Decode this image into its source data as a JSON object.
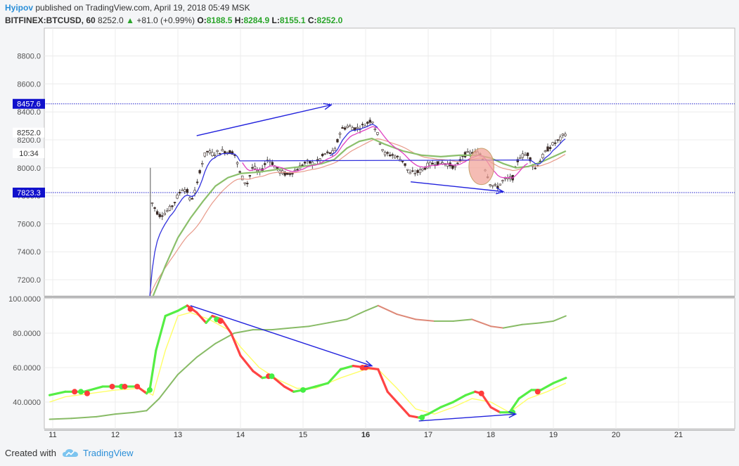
{
  "header": {
    "author": "Hyipov",
    "published": "published on TradingView.com, April 19, 2018 05:49 MSK",
    "symbol": "BITFINEX:BTCUSD, 60",
    "last": "8252.0",
    "change": "+81.0 (+0.99%)",
    "open_label": "O:",
    "open": "8188.5",
    "high_label": "H:",
    "high": "8284.9",
    "low_label": "L:",
    "low": "8155.1",
    "close_label": "C:",
    "close": "8252.0"
  },
  "footer": {
    "created_with": "Created with",
    "brand": "TradingView",
    "logo_icon": "tradingview-cloud-icon"
  },
  "colors": {
    "candle_up": "#ffffff",
    "candle_down": "#3b2a26",
    "candle_wick": "#555555",
    "ema_fast": "#3333dd",
    "ema_mid": "#e040c0",
    "ema_slow": "#8bbf6b",
    "ema_salmon": "#e89a8a",
    "rsi_fast_up": "#55ee44",
    "rsi_fast_down": "#ff4444",
    "rsi_signal": "#ffff66",
    "rsi_slow_up": "#88bb66",
    "rsi_slow_down": "#dd8877",
    "annotation": "#2222dd",
    "level_line": "#2222cc",
    "level_tag": "#1111cc",
    "ellipse_fill": "#f1a59b"
  },
  "chart_data": [
    {
      "type": "candlestick",
      "title": "",
      "x_ticks": [
        "11",
        "12",
        "13",
        "14",
        "15",
        "16",
        "17",
        "18",
        "19",
        "20",
        "21"
      ],
      "y_ticks": [
        "7200.0",
        "7400.0",
        "7600.0",
        "7800.0",
        "8000.0",
        "8200.0",
        "8400.0",
        "8600.0",
        "8800.0"
      ],
      "ylim": [
        7080,
        8880
      ],
      "xlim": [
        10.9,
        21.6
      ],
      "price_tags": [
        {
          "value": 8457.6,
          "label": "8457.6",
          "style": "blue",
          "line": true
        },
        {
          "value": 7823.3,
          "label": "7823.3",
          "style": "blue",
          "line": true
        },
        {
          "value": 8252.0,
          "label": "8252.0",
          "style": "white",
          "line": false
        },
        {
          "value": 8105.0,
          "label": "10:34",
          "style": "white",
          "line": false
        }
      ],
      "price_points": [
        [
          12.55,
          7080
        ],
        [
          12.58,
          7760
        ],
        [
          12.62,
          7720
        ],
        [
          12.7,
          7660
        ],
        [
          12.8,
          7680
        ],
        [
          12.9,
          7720
        ],
        [
          13.0,
          7800
        ],
        [
          13.08,
          7860
        ],
        [
          13.15,
          7830
        ],
        [
          13.2,
          7760
        ],
        [
          13.3,
          7860
        ],
        [
          13.35,
          7980
        ],
        [
          13.45,
          8120
        ],
        [
          13.55,
          8100
        ],
        [
          13.7,
          8120
        ],
        [
          13.9,
          8110
        ],
        [
          14.0,
          7950
        ],
        [
          14.1,
          7880
        ],
        [
          14.2,
          8010
        ],
        [
          14.3,
          7960
        ],
        [
          14.45,
          8070
        ],
        [
          14.6,
          7980
        ],
        [
          14.75,
          7950
        ],
        [
          14.9,
          7990
        ],
        [
          15.05,
          8040
        ],
        [
          15.2,
          8030
        ],
        [
          15.35,
          8100
        ],
        [
          15.5,
          8110
        ],
        [
          15.6,
          8270
        ],
        [
          15.72,
          8300
        ],
        [
          15.85,
          8280
        ],
        [
          16.0,
          8310
        ],
        [
          16.1,
          8350
        ],
        [
          16.22,
          8200
        ],
        [
          16.3,
          8100
        ],
        [
          16.45,
          8090
        ],
        [
          16.6,
          8050
        ],
        [
          16.7,
          7960
        ],
        [
          16.85,
          7970
        ],
        [
          17.0,
          8020
        ],
        [
          17.15,
          8040
        ],
        [
          17.3,
          8030
        ],
        [
          17.45,
          8000
        ],
        [
          17.55,
          8090
        ],
        [
          17.7,
          8110
        ],
        [
          17.85,
          8100
        ],
        [
          17.92,
          7980
        ],
        [
          18.0,
          7880
        ],
        [
          18.1,
          7860
        ],
        [
          18.2,
          7910
        ],
        [
          18.35,
          7930
        ],
        [
          18.45,
          8080
        ],
        [
          18.6,
          8100
        ],
        [
          18.7,
          7990
        ],
        [
          18.8,
          8060
        ],
        [
          18.9,
          8130
        ],
        [
          19.0,
          8170
        ],
        [
          19.1,
          8200
        ],
        [
          19.2,
          8252
        ]
      ],
      "series": [
        {
          "name": "",
          "color": "ema_fast",
          "role": "fast moving average"
        },
        {
          "name": "",
          "color": "ema_mid",
          "role": "medium moving average"
        },
        {
          "name": "",
          "color": "ema_salmon",
          "role": "moving average"
        },
        {
          "name": "",
          "color": "ema_slow",
          "role": "slow moving average"
        }
      ],
      "slow_ma": [
        [
          12.6,
          7080
        ],
        [
          12.8,
          7300
        ],
        [
          13.0,
          7500
        ],
        [
          13.2,
          7640
        ],
        [
          13.4,
          7760
        ],
        [
          13.6,
          7870
        ],
        [
          13.8,
          7930
        ],
        [
          14.0,
          7960
        ],
        [
          14.3,
          7970
        ],
        [
          14.6,
          7990
        ],
        [
          15.0,
          8010
        ],
        [
          15.3,
          8030
        ],
        [
          15.5,
          8060
        ],
        [
          15.7,
          8140
        ],
        [
          15.9,
          8190
        ],
        [
          16.1,
          8210
        ],
        [
          16.3,
          8170
        ],
        [
          16.6,
          8120
        ],
        [
          16.9,
          8090
        ],
        [
          17.2,
          8080
        ],
        [
          17.5,
          8090
        ],
        [
          17.8,
          8090
        ],
        [
          18.0,
          8070
        ],
        [
          18.2,
          8030
        ],
        [
          18.4,
          8000
        ],
        [
          18.6,
          8010
        ],
        [
          18.8,
          8040
        ],
        [
          19.0,
          8080
        ],
        [
          19.2,
          8120
        ]
      ],
      "annotations": [
        {
          "type": "arrow",
          "from": [
            13.3,
            8230
          ],
          "to": [
            15.45,
            8450
          ]
        },
        {
          "type": "arrow",
          "from": [
            16.72,
            7900
          ],
          "to": [
            18.2,
            7830
          ]
        },
        {
          "type": "ellipse",
          "center": [
            17.85,
            8010
          ],
          "rx_days": 0.2,
          "ry_price": 130
        }
      ]
    },
    {
      "type": "line",
      "title": "",
      "y_ticks": [
        "40.0000",
        "60.0000",
        "80.0000",
        "100.0000"
      ],
      "ylim": [
        26,
        100
      ],
      "xlim": [
        10.9,
        21.6
      ],
      "series": [
        {
          "name": "",
          "role": "fast rsi",
          "points": [
            [
              10.95,
              44
            ],
            [
              11.2,
              46
            ],
            [
              11.5,
              46
            ],
            [
              11.8,
              49
            ],
            [
              12.1,
              49
            ],
            [
              12.35,
              49
            ],
            [
              12.5,
              45
            ],
            [
              12.55,
              47
            ],
            [
              12.65,
              70
            ],
            [
              12.8,
              90
            ],
            [
              13.0,
              93
            ],
            [
              13.15,
              96
            ],
            [
              13.3,
              92
            ],
            [
              13.45,
              86
            ],
            [
              13.55,
              90
            ],
            [
              13.7,
              88
            ],
            [
              13.85,
              80
            ],
            [
              14.0,
              67
            ],
            [
              14.2,
              58
            ],
            [
              14.35,
              54
            ],
            [
              14.5,
              55
            ],
            [
              14.7,
              49
            ],
            [
              14.85,
              46
            ],
            [
              15.0,
              47
            ],
            [
              15.2,
              49
            ],
            [
              15.4,
              51
            ],
            [
              15.6,
              59
            ],
            [
              15.8,
              61
            ],
            [
              16.0,
              60
            ],
            [
              16.2,
              59
            ],
            [
              16.35,
              46
            ],
            [
              16.5,
              40
            ],
            [
              16.7,
              32
            ],
            [
              16.85,
              31
            ],
            [
              17.0,
              33
            ],
            [
              17.2,
              37
            ],
            [
              17.4,
              40
            ],
            [
              17.6,
              44
            ],
            [
              17.75,
              46
            ],
            [
              17.85,
              45
            ],
            [
              18.0,
              37
            ],
            [
              18.15,
              34
            ],
            [
              18.3,
              34
            ],
            [
              18.45,
              42
            ],
            [
              18.65,
              47
            ],
            [
              18.8,
              47
            ],
            [
              19.0,
              51
            ],
            [
              19.2,
              54
            ]
          ]
        },
        {
          "name": "",
          "role": "signal line",
          "points": [
            [
              10.95,
              40
            ],
            [
              11.2,
              43
            ],
            [
              11.6,
              45
            ],
            [
              12.0,
              47
            ],
            [
              12.4,
              48
            ],
            [
              12.6,
              44
            ],
            [
              12.8,
              70
            ],
            [
              13.0,
              90
            ],
            [
              13.2,
              92
            ],
            [
              13.5,
              88
            ],
            [
              13.8,
              82
            ],
            [
              14.0,
              72
            ],
            [
              14.3,
              60
            ],
            [
              14.6,
              53
            ],
            [
              14.9,
              48
            ],
            [
              15.2,
              48
            ],
            [
              15.6,
              54
            ],
            [
              16.0,
              59
            ],
            [
              16.2,
              59
            ],
            [
              16.5,
              48
            ],
            [
              16.8,
              36
            ],
            [
              17.1,
              33
            ],
            [
              17.4,
              37
            ],
            [
              17.7,
              42
            ],
            [
              18.0,
              40
            ],
            [
              18.3,
              34
            ],
            [
              18.6,
              42
            ],
            [
              18.9,
              46
            ],
            [
              19.2,
              51
            ]
          ]
        },
        {
          "name": "",
          "role": "slow rsi",
          "points": [
            [
              10.95,
              30
            ],
            [
              11.3,
              30.5
            ],
            [
              11.7,
              31.5
            ],
            [
              12.0,
              33
            ],
            [
              12.3,
              34
            ],
            [
              12.5,
              35
            ],
            [
              12.7,
              42
            ],
            [
              13.0,
              56
            ],
            [
              13.3,
              66
            ],
            [
              13.6,
              74
            ],
            [
              13.9,
              80
            ],
            [
              14.2,
              82
            ],
            [
              14.5,
              82
            ],
            [
              14.8,
              83
            ],
            [
              15.1,
              84
            ],
            [
              15.4,
              86
            ],
            [
              15.7,
              88
            ],
            [
              16.0,
              93
            ],
            [
              16.2,
              96
            ],
            [
              16.5,
              91
            ],
            [
              16.8,
              88
            ],
            [
              17.1,
              87
            ],
            [
              17.4,
              87
            ],
            [
              17.7,
              88
            ],
            [
              18.0,
              84
            ],
            [
              18.2,
              83
            ],
            [
              18.5,
              85
            ],
            [
              18.8,
              86
            ],
            [
              19.0,
              87
            ],
            [
              19.2,
              90
            ]
          ]
        }
      ],
      "cross_markers": [
        {
          "x": 11.35,
          "y": 46,
          "color": "red"
        },
        {
          "x": 11.45,
          "y": 46,
          "color": "green"
        },
        {
          "x": 11.55,
          "y": 45,
          "color": "red"
        },
        {
          "x": 11.95,
          "y": 49,
          "color": "red"
        },
        {
          "x": 12.1,
          "y": 49,
          "color": "green"
        },
        {
          "x": 12.15,
          "y": 49,
          "color": "red"
        },
        {
          "x": 12.35,
          "y": 49,
          "color": "red"
        },
        {
          "x": 12.55,
          "y": 47,
          "color": "green"
        },
        {
          "x": 13.2,
          "y": 94,
          "color": "red"
        },
        {
          "x": 13.62,
          "y": 88,
          "color": "green"
        },
        {
          "x": 13.68,
          "y": 87,
          "color": "red"
        },
        {
          "x": 14.45,
          "y": 55,
          "color": "red"
        },
        {
          "x": 14.5,
          "y": 55,
          "color": "green"
        },
        {
          "x": 15.0,
          "y": 47,
          "color": "green"
        },
        {
          "x": 15.95,
          "y": 60,
          "color": "red"
        },
        {
          "x": 16.0,
          "y": 60,
          "color": "red"
        },
        {
          "x": 16.9,
          "y": 31,
          "color": "green"
        },
        {
          "x": 17.85,
          "y": 45,
          "color": "red"
        },
        {
          "x": 18.35,
          "y": 34,
          "color": "green"
        },
        {
          "x": 18.75,
          "y": 46,
          "color": "red"
        }
      ],
      "annotations": [
        {
          "type": "arrow",
          "from": [
            13.2,
            96
          ],
          "to": [
            16.1,
            61
          ]
        },
        {
          "type": "arrow",
          "from": [
            16.85,
            29
          ],
          "to": [
            18.4,
            33
          ]
        }
      ]
    }
  ]
}
